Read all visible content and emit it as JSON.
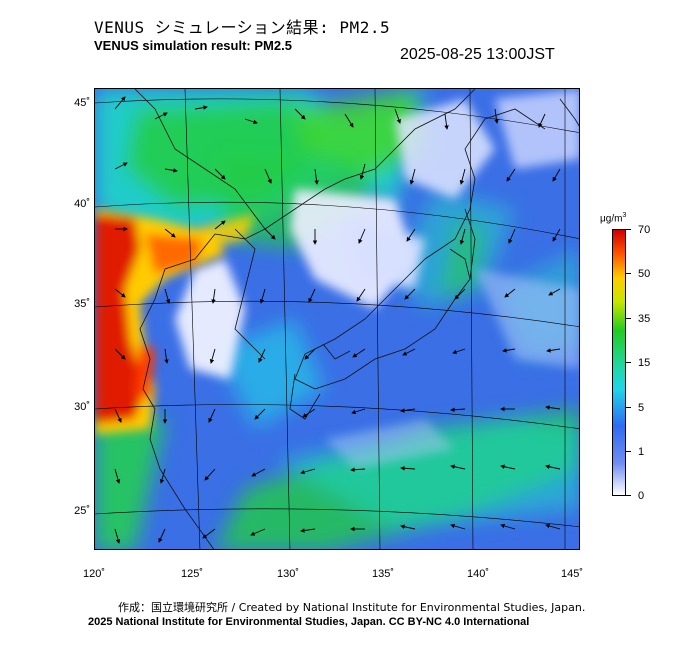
{
  "header": {
    "title_jp": "VENUS シミュレーション結果: PM2.5",
    "title_en": "VENUS simulation result: PM2.5",
    "timestamp": "2025-08-25 13:00JST"
  },
  "map": {
    "lat_labels": [
      "45˚",
      "40˚",
      "35˚",
      "30˚",
      "25˚"
    ],
    "lon_labels": [
      "120˚",
      "125˚",
      "130˚",
      "135˚",
      "140˚",
      "145˚"
    ],
    "palette": {
      "clean": "#eef0ff",
      "low": "#3b6fe6",
      "moderate": "#22cc44",
      "high": "#ffcc00",
      "very_high": "#e01a00"
    }
  },
  "colorbar": {
    "unit_base": "μg/m",
    "unit_sup": "3",
    "ticks": [
      "70",
      "50",
      "35",
      "15",
      "5",
      "1",
      "0"
    ]
  },
  "footer": {
    "credit_jp_en": "作成：国立環境研究所 / Created by National Institute for Environmental Studies, Japan.",
    "license": "2025 National Institute for Environmental Studies, Japan. CC BY-NC 4.0 International"
  }
}
